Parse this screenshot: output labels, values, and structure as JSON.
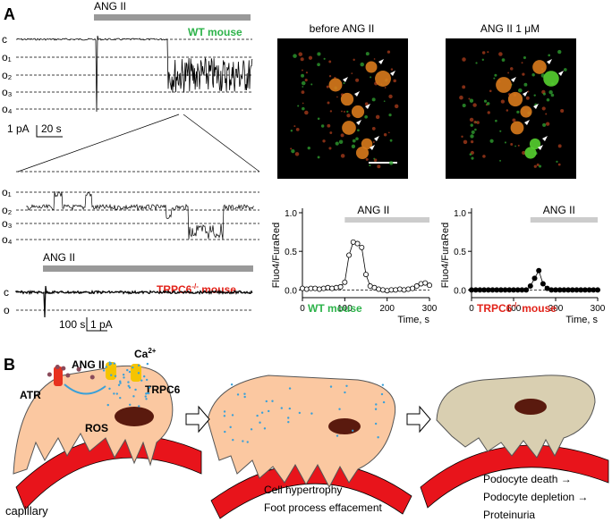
{
  "panel_a": {
    "label": "A",
    "top_trace": {
      "stimulus": "ANG II",
      "genotype": "WT  mouse",
      "levels": [
        "c",
        "o₁",
        "o₂",
        "o₃",
        "o₄"
      ],
      "scale_current": "1 pA",
      "scale_time": "20 s"
    },
    "zoom_trace": {
      "levels": [
        "o₁",
        "o₂",
        "o₃",
        "o₄"
      ]
    },
    "ko_trace": {
      "stimulus": "ANG II",
      "genotype": "TRPC6",
      "genotype_sup": "-/-",
      "genotype_suffix": "mouse",
      "levels": [
        "c",
        "o"
      ],
      "scale_time": "100 s",
      "scale_current": "1 pA"
    },
    "images": [
      "before ANG II",
      "ANG II 1 μM"
    ]
  },
  "chart_data": [
    {
      "type": "line",
      "ylabel": "Fluo4/FuraRed",
      "xlabel": "Time, s",
      "stimulus": "ANG II",
      "stimulus_range": [
        100,
        300
      ],
      "label": "WT mouse",
      "xlim": [
        0,
        300
      ],
      "ylim": [
        -0.1,
        1.0
      ],
      "xticks": [
        0,
        100,
        200,
        300
      ],
      "yticks": [
        {
          "value": 0,
          "label": "0.0"
        },
        {
          "value": 0.5,
          "label": "0.5"
        },
        {
          "value": 1,
          "label": "1.0"
        }
      ],
      "x": [
        0,
        10,
        20,
        30,
        40,
        50,
        60,
        70,
        80,
        90,
        100,
        110,
        120,
        130,
        140,
        150,
        160,
        170,
        180,
        190,
        200,
        210,
        220,
        230,
        240,
        250,
        260,
        270,
        280,
        290,
        300
      ],
      "series": [
        {
          "color": "#ffffff",
          "values": [
            0.02,
            0.01,
            0.02,
            0.02,
            0.01,
            0.02,
            0.03,
            0.02,
            0.03,
            0.04,
            0.1,
            0.45,
            0.62,
            0.6,
            0.55,
            0.2,
            0.05,
            0.03,
            0.01,
            0,
            -0.01,
            0,
            0,
            0.01,
            0,
            0.01,
            0.02,
            0.05,
            0.08,
            0.09,
            0.06
          ]
        }
      ]
    },
    {
      "type": "line",
      "ylabel": "Fluo4/FuraRed",
      "xlabel": "Time, s",
      "stimulus": "ANG II",
      "stimulus_range": [
        140,
        300
      ],
      "label": "TRPC6",
      "label_sup": "-/-",
      "label_suffix": "mouse",
      "xlim": [
        0,
        300
      ],
      "ylim": [
        -0.1,
        1.0
      ],
      "xticks": [
        0,
        100,
        200,
        300
      ],
      "yticks": [
        {
          "value": 0,
          "label": "0.0"
        },
        {
          "value": 0.5,
          "label": "0.5"
        },
        {
          "value": 1,
          "label": "1.0"
        }
      ],
      "x": [
        0,
        10,
        20,
        30,
        40,
        50,
        60,
        70,
        80,
        90,
        100,
        110,
        120,
        130,
        140,
        150,
        160,
        170,
        180,
        190,
        200,
        210,
        220,
        230,
        240,
        250,
        260,
        270,
        280,
        290,
        300
      ],
      "series": [
        {
          "color": "#000000",
          "values": [
            0,
            0,
            0,
            0,
            0,
            0,
            0,
            0,
            0,
            0,
            0,
            0,
            0,
            0,
            0.05,
            0.15,
            0.25,
            0.08,
            0.02,
            0,
            0,
            0,
            0,
            0,
            0,
            0,
            0,
            0,
            0,
            0,
            0
          ]
        }
      ]
    }
  ],
  "panel_b": {
    "label": "B",
    "ang": "ANG II",
    "ca": "Ca",
    "ca_sup": "2+",
    "atr": "ATR",
    "trpc6": "TRPC6",
    "ros": "ROS",
    "capillary": "capillary",
    "stage2": [
      "Cell hypertrophy",
      "Foot process effacement"
    ],
    "stage3": [
      "Podocyte death →",
      "Podocyte depletion →",
      "Proteinuria"
    ]
  }
}
